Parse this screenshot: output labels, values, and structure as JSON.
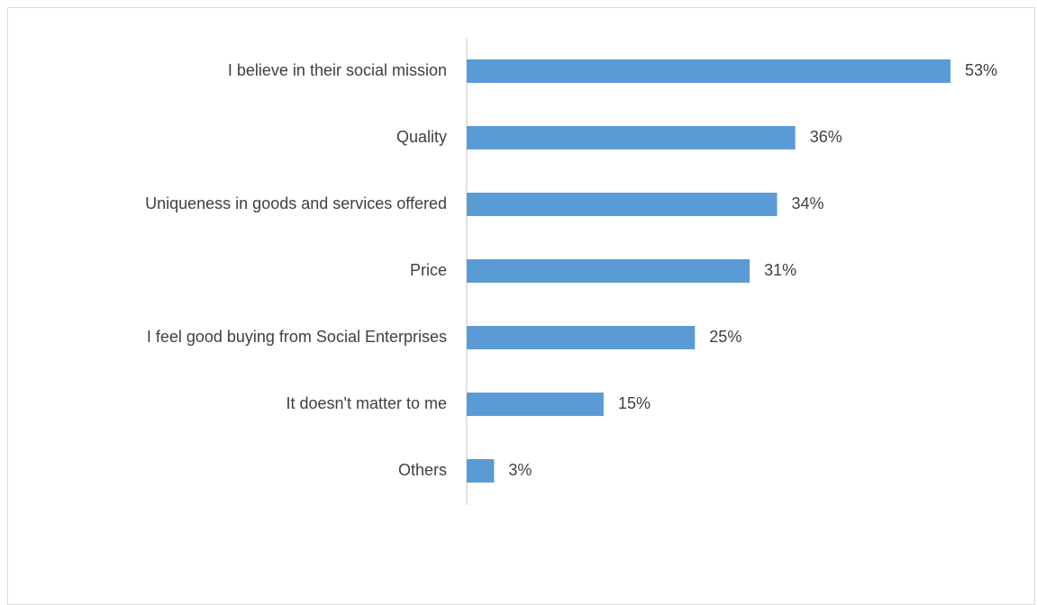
{
  "chart_data": {
    "type": "bar",
    "orientation": "horizontal",
    "categories": [
      "I believe in their social mission",
      "Quality",
      "Uniqueness in goods and services offered",
      "Price",
      "I feel good buying from Social Enterprises",
      "It doesn't matter to me",
      "Others"
    ],
    "values": [
      53,
      36,
      34,
      31,
      25,
      15,
      3
    ],
    "value_labels": [
      "53%",
      "36%",
      "34%",
      "31%",
      "25%",
      "15%",
      "3%"
    ],
    "title": "",
    "xlabel": "",
    "ylabel": "",
    "xlim": [
      0,
      53
    ],
    "grid": false,
    "legend": "none",
    "bar_color": "#5b9bd5",
    "axis_color": "#d9d9d9",
    "text_color": "#404040"
  }
}
